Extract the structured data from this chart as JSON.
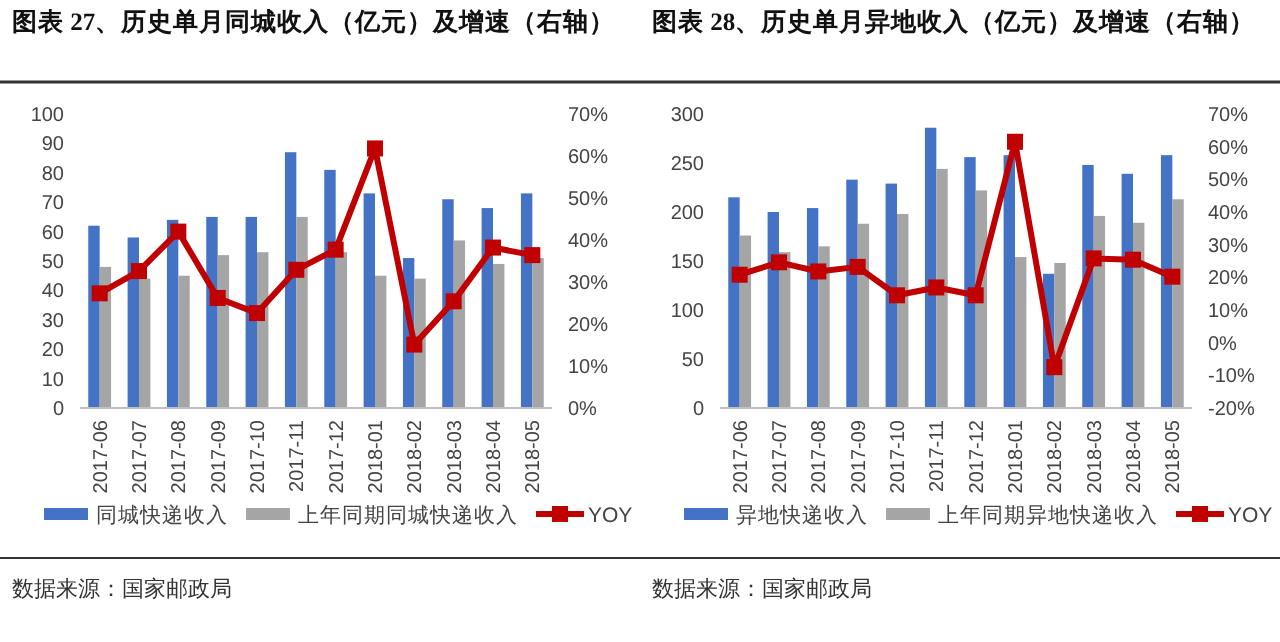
{
  "chart_data": [
    {
      "type": "bar",
      "title": "图表 27、历史单月同城收入（亿元）及增速（右轴）",
      "categories": [
        "2017-06",
        "2017-07",
        "2017-08",
        "2017-09",
        "2017-10",
        "2017-11",
        "2017-12",
        "2018-01",
        "2018-02",
        "2018-03",
        "2018-04",
        "2018-05"
      ],
      "series": [
        {
          "name": "同城快递收入",
          "color": "#4472c4",
          "values": [
            62,
            58,
            64,
            65,
            65,
            87,
            81,
            73,
            51,
            71,
            68,
            73
          ]
        },
        {
          "name": "上年同期同城快递收入",
          "color": "#a5a5a5",
          "values": [
            48,
            44,
            45,
            52,
            53,
            65,
            53,
            45,
            44,
            57,
            49,
            51
          ]
        },
        {
          "name": "YOY",
          "type": "line",
          "axis": "y2",
          "marker": "square",
          "color": "#c00000",
          "values": [
            27.3,
            32.6,
            42,
            26.2,
            22.6,
            32.9,
            37.7,
            61.8,
            15.1,
            25.4,
            38.2,
            36.4
          ]
        }
      ],
      "ylim": [
        0,
        100
      ],
      "yticks": [
        0,
        10,
        20,
        30,
        40,
        50,
        60,
        70,
        80,
        90,
        100
      ],
      "y2lim": [
        0,
        70
      ],
      "y2ticks": [
        {
          "value": 0,
          "label": "0%"
        },
        {
          "value": 10,
          "label": "10%"
        },
        {
          "value": 20,
          "label": "20%"
        },
        {
          "value": 30,
          "label": "30%"
        },
        {
          "value": 40,
          "label": "40%"
        },
        {
          "value": 50,
          "label": "50%"
        },
        {
          "value": 60,
          "label": "60%"
        },
        {
          "value": 70,
          "label": "70%"
        }
      ],
      "legend": "bottom",
      "grid": false,
      "annotations": [
        "数据来源：国家邮政局"
      ]
    },
    {
      "type": "bar",
      "title": "图表 28、历史单月异地收入（亿元）及增速（右轴）",
      "categories": [
        "2017-06",
        "2017-07",
        "2017-08",
        "2017-09",
        "2017-10",
        "2017-11",
        "2017-12",
        "2018-01",
        "2018-02",
        "2018-03",
        "2018-04",
        "2018-05"
      ],
      "series": [
        {
          "name": "异地快递收入",
          "color": "#4472c4",
          "values": [
            215,
            200,
            204,
            233,
            229,
            286,
            256,
            258,
            137,
            248,
            239,
            258
          ]
        },
        {
          "name": "上年同期异地快递收入",
          "color": "#a5a5a5",
          "values": [
            176,
            159,
            165,
            188,
            198,
            244,
            222,
            154,
            148,
            196,
            189,
            213
          ]
        },
        {
          "name": "YOY",
          "type": "line",
          "axis": "y2",
          "marker": "square",
          "color": "#c00000",
          "values": [
            20.8,
            24.6,
            21.8,
            23.2,
            14.5,
            16.9,
            14.5,
            61.5,
            -7.5,
            25.8,
            25.4,
            20.2
          ]
        }
      ],
      "ylim": [
        0,
        300
      ],
      "yticks": [
        0,
        50,
        100,
        150,
        200,
        250,
        300
      ],
      "y2lim": [
        -20,
        70
      ],
      "y2ticks": [
        {
          "value": -20,
          "label": "-20%"
        },
        {
          "value": -10,
          "label": "-10%"
        },
        {
          "value": 0,
          "label": "0%"
        },
        {
          "value": 10,
          "label": "10%"
        },
        {
          "value": 20,
          "label": "20%"
        },
        {
          "value": 30,
          "label": "30%"
        },
        {
          "value": 40,
          "label": "40%"
        },
        {
          "value": 50,
          "label": "50%"
        },
        {
          "value": 60,
          "label": "60%"
        },
        {
          "value": 70,
          "label": "70%"
        }
      ],
      "legend": "bottom",
      "grid": false,
      "annotations": [
        "数据来源：国家邮政局"
      ]
    }
  ]
}
